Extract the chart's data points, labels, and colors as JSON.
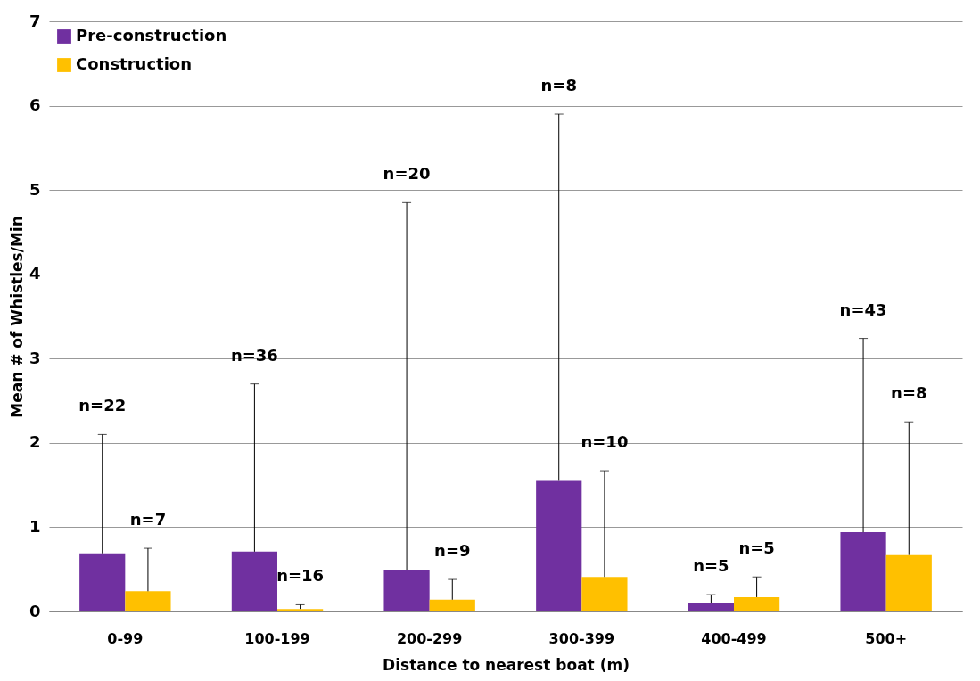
{
  "chart_data": {
    "type": "bar",
    "xlabel": "Distance to nearest boat (m)",
    "ylabel": "Mean # of Whistles/Min",
    "categories": [
      "0-99",
      "100-199",
      "200-299",
      "300-399",
      "400-499",
      "500+"
    ],
    "series": [
      {
        "name": "Pre-construction",
        "color": "#7030a0",
        "values": [
          0.69,
          0.71,
          0.49,
          1.55,
          0.1,
          0.94
        ],
        "errors": [
          [
            0.69,
            2.1
          ],
          [
            0.71,
            2.7
          ],
          [
            0.49,
            4.85
          ],
          [
            1.55,
            5.9
          ],
          [
            0.1,
            0.2
          ],
          [
            0.94,
            3.24
          ]
        ]
      },
      {
        "name": "Construction",
        "color": "#ffc000",
        "values": [
          0.24,
          0.03,
          0.14,
          0.41,
          0.17,
          0.67
        ],
        "errors": [
          [
            0.24,
            0.75
          ],
          [
            0.03,
            0.08
          ],
          [
            0.14,
            0.38
          ],
          [
            0.41,
            1.67
          ],
          [
            0.17,
            0.41
          ],
          [
            0.67,
            2.25
          ]
        ]
      }
    ],
    "annotations": [
      "n=22",
      "n=7",
      "n=36",
      "n=16",
      "n=20",
      "n=9",
      "n=8",
      "n=10",
      "n=5",
      "n=5",
      "n=43",
      "n=8"
    ],
    "ylim": [
      0,
      7
    ],
    "yticks": [
      0,
      1,
      2,
      3,
      4,
      5,
      6,
      7
    ],
    "grid": "y",
    "legend": "top left"
  }
}
